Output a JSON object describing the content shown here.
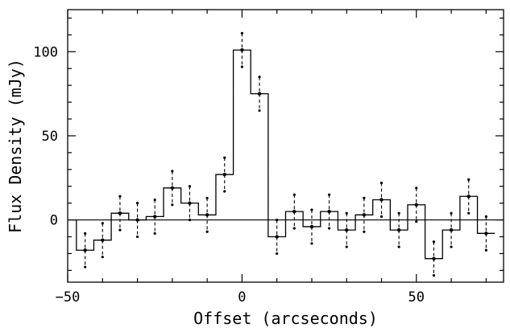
{
  "chart_data": {
    "type": "line",
    "xlabel": "Offset (arcseconds)",
    "ylabel": "Flux Density (mJy)",
    "xlim": [
      -50,
      75
    ],
    "ylim": [
      -37,
      125
    ],
    "x_ticks": [
      -50,
      0,
      50
    ],
    "x_tick_labels": [
      "−50",
      "0",
      "50"
    ],
    "y_ticks": [
      0,
      50,
      100
    ],
    "y_tick_labels": [
      "0",
      "50",
      "100"
    ],
    "grid": false,
    "zero_line": true,
    "step_width": 5,
    "series": [
      {
        "x": [
          -45,
          -40,
          -35,
          -30,
          -25,
          -20,
          -15,
          -10,
          -5,
          0,
          5,
          10,
          15,
          20,
          25,
          30,
          35,
          40,
          45,
          50,
          55,
          60,
          65,
          70
        ],
        "y": [
          -18,
          -12,
          4,
          0,
          2,
          19,
          10,
          3,
          27,
          101,
          75,
          -10,
          5,
          -4,
          5,
          -6,
          3,
          12,
          -6,
          9,
          -23,
          -6,
          14,
          -8
        ],
        "error": [
          10,
          10,
          10,
          10,
          10,
          10,
          10,
          10,
          10,
          10,
          10,
          10,
          10,
          10,
          10,
          10,
          10,
          10,
          10,
          10,
          10,
          10,
          10,
          10
        ]
      }
    ]
  }
}
